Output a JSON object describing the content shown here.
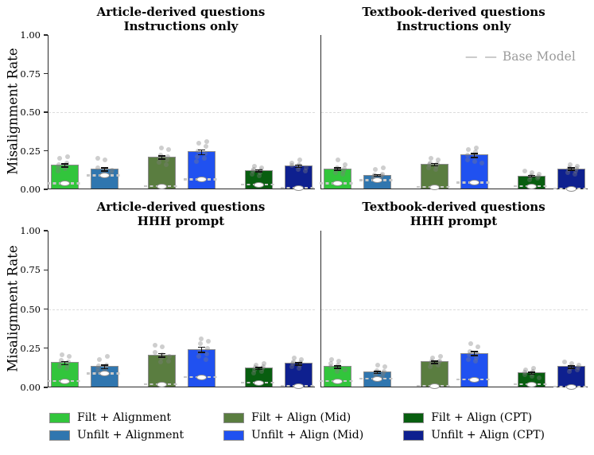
{
  "figure": {
    "ylabel": "Misalignment Rate",
    "ytick_labels": [
      "0.00",
      "0.25",
      "0.50",
      "0.75",
      "1.00"
    ],
    "base_model_dashes": "— —",
    "base_model_label": "Base Model",
    "colors": {
      "filt_alignment": "#32c53c",
      "unfilt_alignment": "#3076af",
      "filt_align_mid": "#5a7d40",
      "unfilt_align_mid": "#2051f0",
      "filt_align_cpt": "#085e10",
      "unfilt_align_cpt": "#0e208f",
      "gridline": "#dcdcdc",
      "base_model_line": "#c7c7c7",
      "scatter": "#7d7d7d",
      "error_bar": "#141414"
    }
  },
  "legend": {
    "items": [
      {
        "label": "Filt + Alignment",
        "color": "#32c53c"
      },
      {
        "label": "Unfilt + Alignment",
        "color": "#3076af"
      },
      {
        "label": "Filt + Align (Mid)",
        "color": "#5a7d40"
      },
      {
        "label": "Unfilt + Align (Mid)",
        "color": "#2051f0"
      },
      {
        "label": "Filt + Align (CPT)",
        "color": "#085e10"
      },
      {
        "label": "Unfilt + Align (CPT)",
        "color": "#0e208f"
      }
    ]
  },
  "chart_data": [
    {
      "type": "bar",
      "title_line1": "Article-derived questions",
      "title_line2": "Instructions only",
      "ylabel": "Misalignment Rate",
      "ylim": [
        0,
        1
      ],
      "yticks": [
        0,
        0.25,
        0.5,
        0.75,
        1.0
      ],
      "gridline": 0.5,
      "legend_note": null,
      "categories": [
        "Filt + Alignment",
        "Unfilt + Alignment",
        "Filt + Align (Mid)",
        "Unfilt + Align (Mid)",
        "Filt + Align (CPT)",
        "Unfilt + Align (CPT)"
      ],
      "values": [
        0.155,
        0.13,
        0.205,
        0.24,
        0.12,
        0.15
      ],
      "errors": [
        0.015,
        0.015,
        0.015,
        0.02,
        0.01,
        0.012
      ],
      "base_model": [
        0.04,
        0.09,
        0.02,
        0.065,
        0.03,
        0.01
      ],
      "points": [
        [
          0.12,
          0.135,
          0.145,
          0.15,
          0.16,
          0.17,
          0.2,
          0.21
        ],
        [
          0.1,
          0.11,
          0.12,
          0.125,
          0.13,
          0.14,
          0.19,
          0.2
        ],
        [
          0.16,
          0.175,
          0.19,
          0.2,
          0.21,
          0.22,
          0.26,
          0.27
        ],
        [
          0.18,
          0.2,
          0.21,
          0.23,
          0.25,
          0.28,
          0.3,
          0.31
        ],
        [
          0.09,
          0.1,
          0.11,
          0.12,
          0.125,
          0.13,
          0.14,
          0.15
        ],
        [
          0.12,
          0.13,
          0.14,
          0.15,
          0.155,
          0.16,
          0.17,
          0.19
        ]
      ]
    },
    {
      "type": "bar",
      "title_line1": "Textbook-derived questions",
      "title_line2": "Instructions only",
      "ylabel": "Misalignment Rate",
      "ylim": [
        0,
        1
      ],
      "yticks": [
        0,
        0.25,
        0.5,
        0.75,
        1.0
      ],
      "gridline": 0.5,
      "legend_note": "Base Model",
      "categories": [
        "Filt + Alignment",
        "Unfilt + Alignment",
        "Filt + Align (Mid)",
        "Unfilt + Align (Mid)",
        "Filt + Align (CPT)",
        "Unfilt + Align (CPT)"
      ],
      "values": [
        0.13,
        0.09,
        0.16,
        0.22,
        0.085,
        0.13
      ],
      "errors": [
        0.012,
        0.01,
        0.012,
        0.018,
        0.01,
        0.012
      ],
      "base_model": [
        0.04,
        0.06,
        0.015,
        0.045,
        0.02,
        0.005
      ],
      "points": [
        [
          0.1,
          0.11,
          0.12,
          0.13,
          0.135,
          0.14,
          0.16,
          0.19
        ],
        [
          0.07,
          0.08,
          0.085,
          0.09,
          0.095,
          0.1,
          0.13,
          0.14
        ],
        [
          0.13,
          0.14,
          0.15,
          0.16,
          0.165,
          0.17,
          0.19,
          0.2
        ],
        [
          0.17,
          0.18,
          0.19,
          0.21,
          0.22,
          0.24,
          0.26,
          0.27
        ],
        [
          0.06,
          0.07,
          0.08,
          0.085,
          0.09,
          0.1,
          0.11,
          0.12
        ],
        [
          0.1,
          0.11,
          0.12,
          0.13,
          0.135,
          0.14,
          0.15,
          0.16
        ]
      ]
    },
    {
      "type": "bar",
      "title_line1": "Article-derived questions",
      "title_line2": "HHH prompt",
      "ylabel": "Misalignment Rate",
      "ylim": [
        0,
        1
      ],
      "yticks": [
        0,
        0.25,
        0.5,
        0.75,
        1.0
      ],
      "gridline": 0.5,
      "legend_note": null,
      "categories": [
        "Filt + Alignment",
        "Unfilt + Alignment",
        "Filt + Align (Mid)",
        "Unfilt + Align (Mid)",
        "Filt + Align (CPT)",
        "Unfilt + Align (CPT)"
      ],
      "values": [
        0.155,
        0.13,
        0.205,
        0.24,
        0.12,
        0.15
      ],
      "errors": [
        0.015,
        0.015,
        0.015,
        0.02,
        0.01,
        0.012
      ],
      "base_model": [
        0.04,
        0.09,
        0.02,
        0.065,
        0.03,
        0.01
      ],
      "points": [
        [
          0.12,
          0.13,
          0.14,
          0.15,
          0.16,
          0.175,
          0.2,
          0.21
        ],
        [
          0.1,
          0.11,
          0.12,
          0.13,
          0.135,
          0.14,
          0.18,
          0.2
        ],
        [
          0.16,
          0.17,
          0.19,
          0.2,
          0.21,
          0.225,
          0.26,
          0.27
        ],
        [
          0.18,
          0.2,
          0.215,
          0.23,
          0.25,
          0.28,
          0.295,
          0.31
        ],
        [
          0.09,
          0.1,
          0.11,
          0.12,
          0.125,
          0.13,
          0.14,
          0.15
        ],
        [
          0.12,
          0.13,
          0.14,
          0.15,
          0.155,
          0.16,
          0.18,
          0.19
        ]
      ]
    },
    {
      "type": "bar",
      "title_line1": "Textbook-derived questions",
      "title_line2": "HHH prompt",
      "ylabel": "Misalignment Rate",
      "ylim": [
        0,
        1
      ],
      "yticks": [
        0,
        0.25,
        0.5,
        0.75,
        1.0
      ],
      "gridline": 0.5,
      "legend_note": null,
      "categories": [
        "Filt + Alignment",
        "Unfilt + Alignment",
        "Filt + Align (Mid)",
        "Unfilt + Align (Mid)",
        "Filt + Align (CPT)",
        "Unfilt + Align (CPT)"
      ],
      "values": [
        0.13,
        0.095,
        0.16,
        0.215,
        0.09,
        0.13
      ],
      "errors": [
        0.012,
        0.01,
        0.012,
        0.018,
        0.01,
        0.012
      ],
      "base_model": [
        0.04,
        0.055,
        0.01,
        0.05,
        0.02,
        0.005
      ],
      "points": [
        [
          0.1,
          0.11,
          0.12,
          0.13,
          0.14,
          0.15,
          0.17,
          0.18
        ],
        [
          0.07,
          0.08,
          0.09,
          0.095,
          0.1,
          0.105,
          0.13,
          0.14
        ],
        [
          0.13,
          0.14,
          0.15,
          0.16,
          0.165,
          0.17,
          0.19,
          0.2
        ],
        [
          0.17,
          0.18,
          0.19,
          0.21,
          0.22,
          0.23,
          0.26,
          0.28
        ],
        [
          0.06,
          0.07,
          0.08,
          0.09,
          0.095,
          0.1,
          0.11,
          0.12
        ],
        [
          0.1,
          0.11,
          0.12,
          0.125,
          0.13,
          0.14,
          0.15,
          0.16
        ]
      ]
    }
  ]
}
